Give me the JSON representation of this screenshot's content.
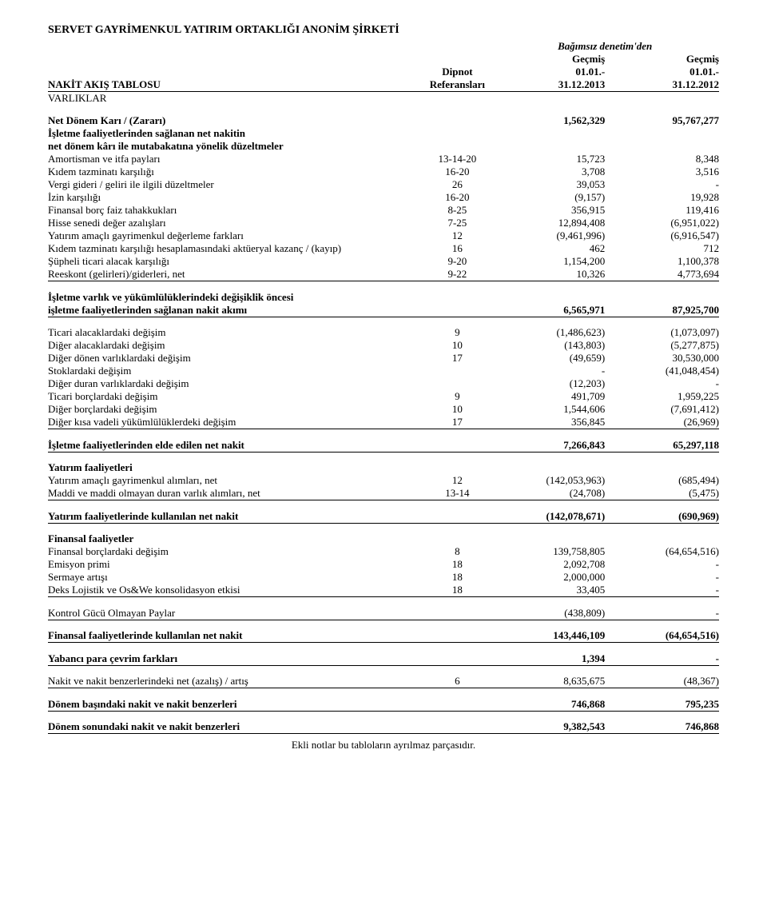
{
  "company": "SERVET GAYRİMENKUL YATIRIM ORTAKLIĞI ANONİM ŞİRKETİ",
  "header": {
    "audit_line1": "Bağımsız denetim'den",
    "gecmis": "Geçmiş",
    "dipnot": "Dipnot",
    "referanslari": "Referansları",
    "date1_top": "01.01.-",
    "date1_bot": "31.12.2013",
    "date2_top": "01.01.-",
    "date2_bot": "31.12.2012",
    "nakit_akis": "NAKİT AKIŞ TABLOSU",
    "varliklar": "VARLIKLAR"
  },
  "rows": [
    {
      "label": "Net Dönem Karı / (Zararı)",
      "ref": "",
      "v1": "1,562,329",
      "v2": "95,767,277",
      "bold": true
    },
    {
      "label": "İşletme faaliyetlerinden sağlanan net nakitin",
      "ref": "",
      "v1": "",
      "v2": "",
      "bold": true
    },
    {
      "label": "net dönem kârı ile mutabakatına yönelik düzeltmeler",
      "ref": "",
      "v1": "",
      "v2": "",
      "bold": true
    },
    {
      "label": "Amortisman ve itfa payları",
      "ref": "13-14-20",
      "v1": "15,723",
      "v2": "8,348"
    },
    {
      "label": "Kıdem tazminatı karşılığı",
      "ref": "16-20",
      "v1": "3,708",
      "v2": "3,516"
    },
    {
      "label": "Vergi gideri / geliri ile ilgili düzeltmeler",
      "ref": "26",
      "v1": "39,053",
      "v2": "-"
    },
    {
      "label": "İzin karşılığı",
      "ref": "16-20",
      "v1": "(9,157)",
      "v2": "19,928"
    },
    {
      "label": "Finansal borç faiz tahakkukları",
      "ref": "8-25",
      "v1": "356,915",
      "v2": "119,416"
    },
    {
      "label": "Hisse senedi değer azalışları",
      "ref": "7-25",
      "v1": "12,894,408",
      "v2": "(6,951,022)"
    },
    {
      "label": "Yatırım amaçlı gayrimenkul değerleme farkları",
      "ref": "12",
      "v1": "(9,461,996)",
      "v2": "(6,916,547)"
    },
    {
      "label": "Kıdem tazminatı karşılığı hesaplamasındaki aktüeryal kazanç / (kayıp)",
      "ref": "16",
      "v1": "462",
      "v2": "712"
    },
    {
      "label": "Şüpheli ticari alacak karşılığı",
      "ref": "9-20",
      "v1": "1,154,200",
      "v2": "1,100,378"
    },
    {
      "label": "Reeskont (gelirleri)/giderleri, net",
      "ref": "9-22",
      "v1": "10,326",
      "v2": "4,773,694",
      "underline": true
    }
  ],
  "section1": {
    "l1": "İşletme varlık ve yükümlülüklerindeki değişiklik öncesi",
    "l2": "işletme faaliyetlerinden sağlanan nakit akımı",
    "v1": "6,565,971",
    "v2": "87,925,700"
  },
  "rows2": [
    {
      "label": "Ticari alacaklardaki değişim",
      "ref": "9",
      "v1": "(1,486,623)",
      "v2": "(1,073,097)"
    },
    {
      "label": "Diğer alacaklardaki değişim",
      "ref": "10",
      "v1": "(143,803)",
      "v2": "(5,277,875)"
    },
    {
      "label": "Diğer dönen varlıklardaki değişim",
      "ref": "17",
      "v1": "(49,659)",
      "v2": "30,530,000"
    },
    {
      "label": "Stoklardaki değişim",
      "ref": "",
      "v1": "-",
      "v2": "(41,048,454)"
    },
    {
      "label": "Diğer duran varlıklardaki değişim",
      "ref": "",
      "v1": "(12,203)",
      "v2": "-"
    },
    {
      "label": "Ticari borçlardaki değişim",
      "ref": "9",
      "v1": "491,709",
      "v2": "1,959,225"
    },
    {
      "label": "Diğer borçlardaki değişim",
      "ref": "10",
      "v1": "1,544,606",
      "v2": "(7,691,412)"
    },
    {
      "label": "Diğer kısa vadeli yükümlülüklerdeki değişim",
      "ref": "17",
      "v1": "356,845",
      "v2": "(26,969)",
      "underline": true
    }
  ],
  "section2": {
    "label": "İşletme faaliyetlerinden elde edilen net nakit",
    "v1": "7,266,843",
    "v2": "65,297,118"
  },
  "yatirim_header": "Yatırım faaliyetleri",
  "rows3": [
    {
      "label": "Yatırım amaçlı gayrimenkul alımları, net",
      "ref": "12",
      "v1": "(142,053,963)",
      "v2": "(685,494)"
    },
    {
      "label": "Maddi ve maddi olmayan duran varlık alımları, net",
      "ref": "13-14",
      "v1": "(24,708)",
      "v2": "(5,475)",
      "underline": true
    }
  ],
  "section3": {
    "label": "Yatırım faaliyetlerinde kullanılan net nakit",
    "v1": "(142,078,671)",
    "v2": "(690,969)"
  },
  "finansal_header": "Finansal faaliyetler",
  "rows4": [
    {
      "label": "Finansal borçlardaki değişim",
      "ref": "8",
      "v1": "139,758,805",
      "v2": "(64,654,516)"
    },
    {
      "label": "Emisyon primi",
      "ref": "18",
      "v1": "2,092,708",
      "v2": "-"
    },
    {
      "label": "Sermaye artışı",
      "ref": "18",
      "v1": "2,000,000",
      "v2": "-"
    },
    {
      "label": "Deks Lojistik ve Os&We konsolidasyon etkisi",
      "ref": "18",
      "v1": "33,405",
      "v2": "-",
      "underline": true
    }
  ],
  "kontrol": {
    "label": "Kontrol Gücü Olmayan Paylar",
    "v1": "(438,809)",
    "v2": "-"
  },
  "section4": {
    "label": "Finansal faaliyetlerinde kullanılan net nakit",
    "v1": "143,446,109",
    "v2": "(64,654,516)"
  },
  "yabanci": {
    "label": "Yabancı para çevrim farkları",
    "v1": "1,394",
    "v2": "-"
  },
  "nakit_degisim": {
    "label": "Nakit ve nakit benzerlerindeki net (azalış) / artış",
    "ref": "6",
    "v1": "8,635,675",
    "v2": "(48,367)"
  },
  "donem_basi": {
    "label": "Dönem başındaki nakit ve nakit benzerleri",
    "v1": "746,868",
    "v2": "795,235"
  },
  "donem_sonu": {
    "label": "Dönem sonundaki nakit ve nakit benzerleri",
    "v1": "9,382,543",
    "v2": "746,868"
  },
  "footer": "Ekli notlar bu tabloların ayrılmaz parçasıdır."
}
